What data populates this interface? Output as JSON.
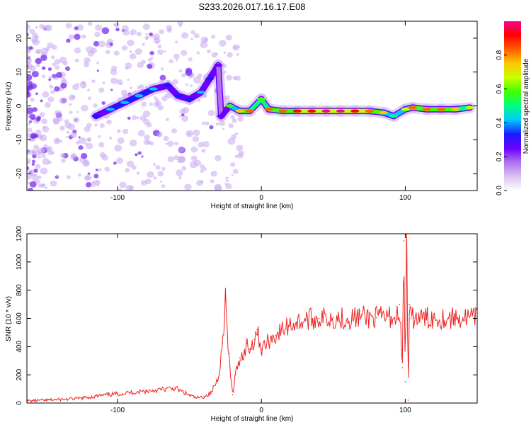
{
  "title": "S233.2026.017.16.17.E08",
  "chart_data": [
    {
      "type": "heatmap",
      "xlabel": "Height of straight line (km)",
      "ylabel": "Frequency (Hz)",
      "xlim": [
        -163,
        150
      ],
      "ylim": [
        -25,
        25
      ],
      "xticks": [
        -100,
        0,
        100
      ],
      "yticks": [
        -20,
        -10,
        0,
        10,
        20
      ],
      "colorbar": {
        "label": "Normalized spectral amplitude",
        "range": [
          0,
          1
        ],
        "ticks": [
          0.0,
          0.2,
          0.4,
          0.6,
          0.8
        ],
        "colors": [
          "#ffffff",
          "#d9c2f0",
          "#b070f0",
          "#6a00ff",
          "#1a1aff",
          "#00c8ff",
          "#00ff80",
          "#40ff00",
          "#c8ff00",
          "#ffc800",
          "#ff6000",
          "#ff0000",
          "#ff0090"
        ]
      },
      "ridge": [
        {
          "x": -115,
          "y": -3,
          "v": 0.35
        },
        {
          "x": -105,
          "y": -1,
          "v": 0.45
        },
        {
          "x": -95,
          "y": 1,
          "v": 0.4
        },
        {
          "x": -85,
          "y": 3,
          "v": 0.45
        },
        {
          "x": -75,
          "y": 5,
          "v": 0.4
        },
        {
          "x": -65,
          "y": 6,
          "v": 0.35
        },
        {
          "x": -58,
          "y": 3,
          "v": 0.3
        },
        {
          "x": -50,
          "y": 2,
          "v": 0.35
        },
        {
          "x": -42,
          "y": 4,
          "v": 0.4
        },
        {
          "x": -36,
          "y": 8,
          "v": 0.35
        },
        {
          "x": -30,
          "y": 12,
          "v": 0.25
        },
        {
          "x": -28,
          "y": -3,
          "v": 0.25
        },
        {
          "x": -22,
          "y": 0,
          "v": 0.55
        },
        {
          "x": -15,
          "y": -1.5,
          "v": 0.75
        },
        {
          "x": -8,
          "y": -1.5,
          "v": 0.8
        },
        {
          "x": 0,
          "y": 2,
          "v": 0.55
        },
        {
          "x": 5,
          "y": -1,
          "v": 0.8
        },
        {
          "x": 15,
          "y": -1.5,
          "v": 0.85
        },
        {
          "x": 25,
          "y": -1.5,
          "v": 0.9
        },
        {
          "x": 35,
          "y": -1.5,
          "v": 0.95
        },
        {
          "x": 45,
          "y": -1.5,
          "v": 1.0
        },
        {
          "x": 55,
          "y": -1.5,
          "v": 1.0
        },
        {
          "x": 65,
          "y": -1.5,
          "v": 0.95
        },
        {
          "x": 75,
          "y": -1.5,
          "v": 0.85
        },
        {
          "x": 85,
          "y": -2,
          "v": 0.75
        },
        {
          "x": 92,
          "y": -3,
          "v": 0.5
        },
        {
          "x": 100,
          "y": -1,
          "v": 0.65
        },
        {
          "x": 105,
          "y": -0.5,
          "v": 0.85
        },
        {
          "x": 115,
          "y": -1,
          "v": 0.85
        },
        {
          "x": 125,
          "y": -1,
          "v": 0.8
        },
        {
          "x": 135,
          "y": -1,
          "v": 0.75
        },
        {
          "x": 145,
          "y": -0.5,
          "v": 0.65
        }
      ]
    },
    {
      "type": "line",
      "xlabel": "Height of straight line (km)",
      "ylabel": "SNR (10 * v/v)",
      "xlim": [
        -163,
        150
      ],
      "ylim": [
        0,
        1200
      ],
      "xticks": [
        -100,
        0,
        100
      ],
      "yticks": [
        0,
        200,
        400,
        600,
        800,
        1000,
        1200
      ],
      "color": "#ee2222",
      "series": [
        {
          "x": [
            -163,
            -150,
            -140,
            -130,
            -120,
            -110,
            -100,
            -90,
            -80,
            -70,
            -60,
            -50,
            -45,
            -40,
            -35,
            -30,
            -27,
            -25,
            -23,
            -20,
            -18,
            -15,
            -12,
            -10,
            -8,
            -5,
            -3,
            0,
            5,
            10,
            15,
            20,
            25,
            30,
            35,
            40,
            50,
            60,
            70,
            80,
            90,
            94,
            96,
            98,
            99,
            100,
            101,
            102,
            103,
            104,
            106,
            110,
            120,
            130,
            140,
            150
          ],
          "y": [
            15,
            20,
            25,
            30,
            40,
            55,
            65,
            75,
            85,
            95,
            105,
            55,
            35,
            45,
            70,
            180,
            420,
            760,
            350,
            60,
            200,
            320,
            350,
            420,
            380,
            450,
            520,
            380,
            440,
            480,
            520,
            560,
            570,
            590,
            595,
            600,
            605,
            600,
            610,
            605,
            610,
            600,
            700,
            250,
            1150,
            150,
            1220,
            20,
            700,
            600,
            605,
            600,
            605,
            600,
            605,
            600
          ]
        }
      ]
    }
  ]
}
